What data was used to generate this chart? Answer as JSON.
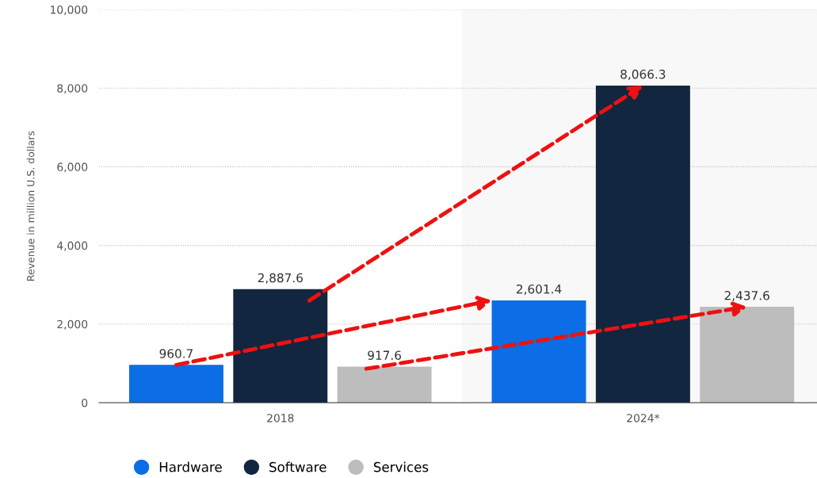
{
  "chart_data": {
    "type": "bar",
    "ylabel": "Revenue in million U.S. dollars",
    "categories": [
      "2018",
      "2024*"
    ],
    "series": [
      {
        "name": "Hardware",
        "color": "#0b6ee6",
        "values": [
          960.7,
          2601.4
        ],
        "value_labels": [
          "960.7",
          "2,601.4"
        ]
      },
      {
        "name": "Software",
        "color": "#12263f",
        "values": [
          2887.6,
          8066.3
        ],
        "value_labels": [
          "2,887.6",
          "8,066.3"
        ]
      },
      {
        "name": "Services",
        "color": "#bdbdbd",
        "values": [
          917.6,
          2437.6
        ],
        "value_labels": [
          "917.6",
          "2,437.6"
        ]
      }
    ],
    "ylim": [
      0,
      10000
    ],
    "yticks": [
      {
        "value": 0,
        "label": "0"
      },
      {
        "value": 2000,
        "label": "2,000"
      },
      {
        "value": 4000,
        "label": "4,000"
      },
      {
        "value": 6000,
        "label": "6,000"
      },
      {
        "value": 8000,
        "label": "8,000"
      },
      {
        "value": 10000,
        "label": "10,000"
      }
    ],
    "bands": [
      {
        "axis": "x",
        "from": "2024*",
        "to": "2024*",
        "color": "#f8f8f8"
      }
    ],
    "grid": "y",
    "legend": "bottom"
  }
}
